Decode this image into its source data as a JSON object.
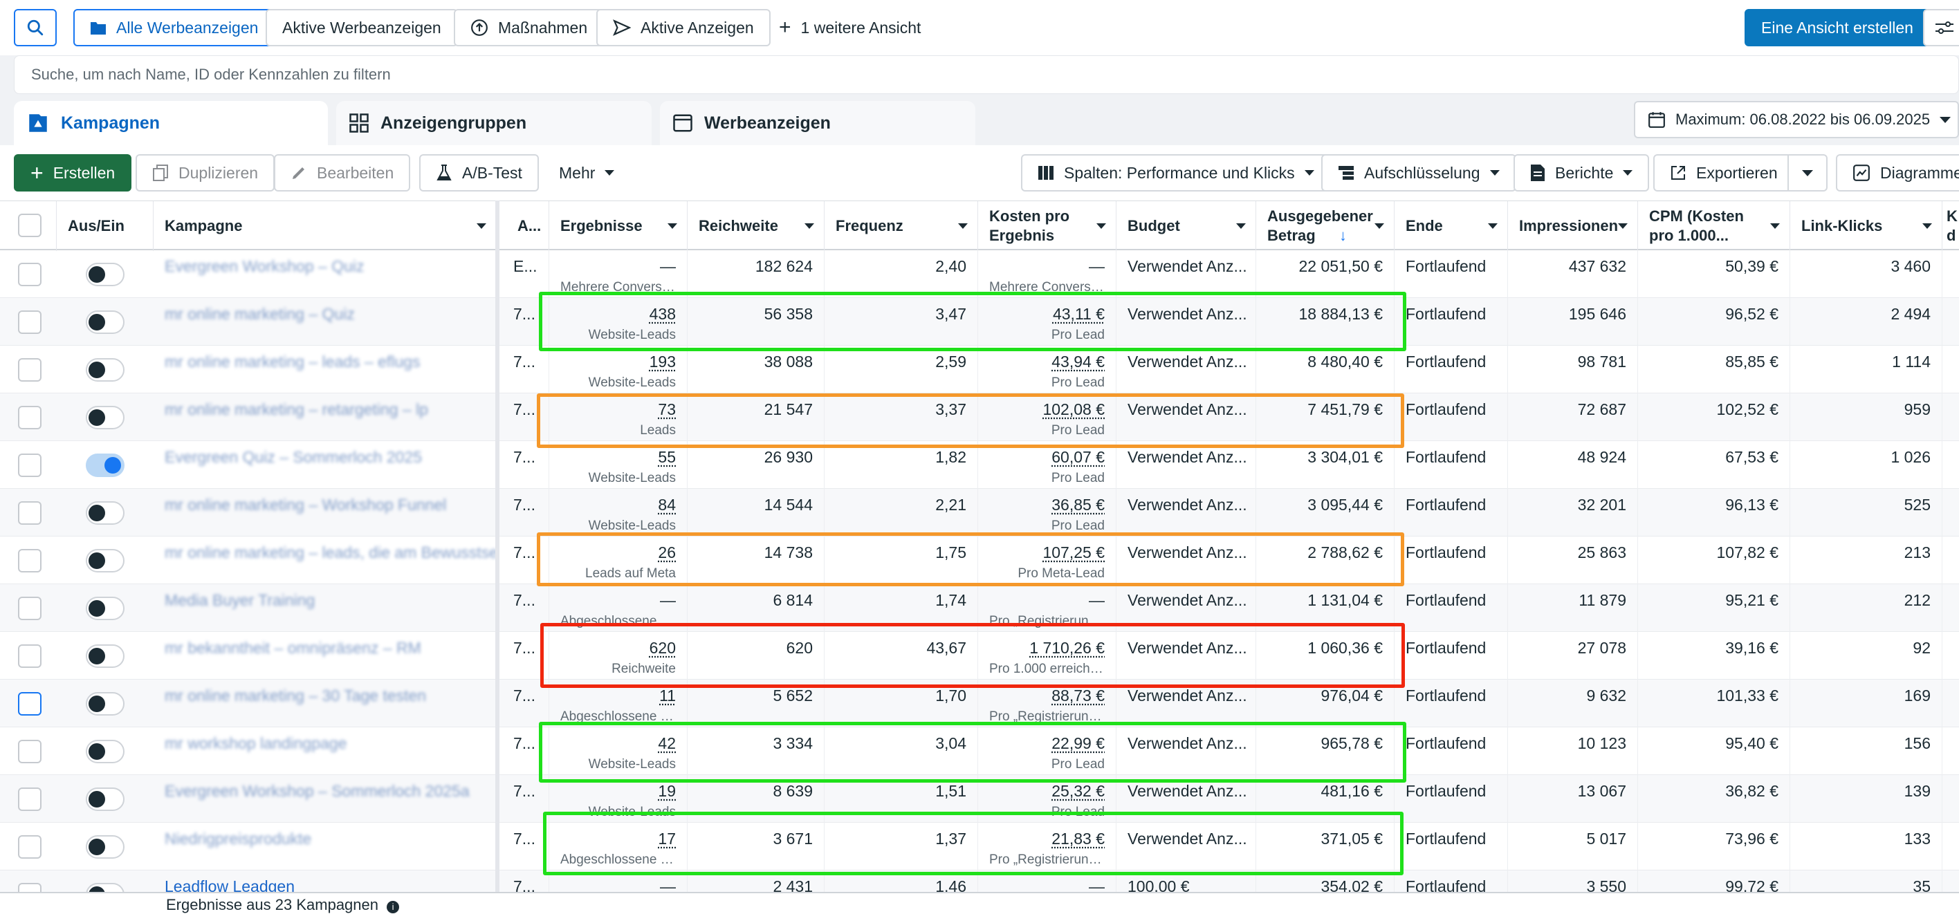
{
  "topbar": {
    "views": [
      "Alle Werbeanzeigen",
      "Aktive Werbeanzeigen",
      "Maßnahmen",
      "Aktive Anzeigen",
      "1 weitere Ansicht"
    ],
    "create_view": "Eine Ansicht erstellen"
  },
  "search": {
    "placeholder": "Suche, um nach Name, ID oder Kennzahlen zu filtern"
  },
  "tabs": [
    "Kampagnen",
    "Anzeigengruppen",
    "Werbeanzeigen"
  ],
  "daterange": "Maximum: 06.08.2022 bis 06.09.2025",
  "toolbar": {
    "create": "Erstellen",
    "duplicate": "Duplizieren",
    "edit": "Bearbeiten",
    "abtest": "A/B-Test",
    "more": "Mehr",
    "columns": "Spalten: Performance und Klicks",
    "breakdown": "Aufschlüsselung",
    "reports": "Berichte",
    "export": "Exportieren",
    "charts": "Diagramme"
  },
  "columns": {
    "onoff": "Aus/Ein",
    "campaign": "Kampagne",
    "a": "A...",
    "results": "Ergebnisse",
    "reach": "Reichweite",
    "frequency": "Frequenz",
    "cpr": "Kosten pro Ergebnis",
    "budget": "Budget",
    "spent": "Ausgegebener Betrag",
    "end": "Ende",
    "impressions": "Impressionen",
    "cpm": "CPM (Kosten pro 1.000...",
    "clicks": "Link-Klicks",
    "next": "K d"
  },
  "rows": [
    {
      "name": "Evergreen Workshop – Quiz",
      "a": "E...",
      "res": "—",
      "res_sub": "Mehrere Conversions",
      "reach": "182 624",
      "freq": "2,40",
      "cpr": "—",
      "cpr_sub": "Mehrere Conversions",
      "budget": "Verwendet Anz...",
      "spent": "22 051,50 €",
      "end": "Fortlaufend",
      "impr": "437 632",
      "cpm": "50,39 €",
      "clicks": "3 460",
      "on": false
    },
    {
      "name": "mr online marketing – Quiz",
      "a": "7...",
      "res": "438",
      "res_sub": "Website-Leads",
      "reach": "56 358",
      "freq": "3,47",
      "cpr": "43,11 €",
      "cpr_sub": "Pro Lead",
      "budget": "Verwendet Anz...",
      "spent": "18 884,13 €",
      "end": "Fortlaufend",
      "impr": "195 646",
      "cpm": "96,52 €",
      "clicks": "2 494",
      "on": false
    },
    {
      "name": "mr online marketing – leads – eflugs",
      "a": "7...",
      "res": "193",
      "res_sub": "Website-Leads",
      "reach": "38 088",
      "freq": "2,59",
      "cpr": "43,94 €",
      "cpr_sub": "Pro Lead",
      "budget": "Verwendet Anz...",
      "spent": "8 480,40 €",
      "end": "Fortlaufend",
      "impr": "98 781",
      "cpm": "85,85 €",
      "clicks": "1 114",
      "on": false
    },
    {
      "name": "mr online marketing – retargeting – lp",
      "a": "7...",
      "res": "73",
      "res_sub": "Leads",
      "reach": "21 547",
      "freq": "3,37",
      "cpr": "102,08 €",
      "cpr_sub": "Pro Lead",
      "budget": "Verwendet Anz...",
      "spent": "7 451,79 €",
      "end": "Fortlaufend",
      "impr": "72 687",
      "cpm": "102,52 €",
      "clicks": "959",
      "on": false
    },
    {
      "name": "Evergreen Quiz – Sommerloch 2025",
      "a": "7...",
      "res": "55",
      "res_sub": "Website-Leads",
      "reach": "26 930",
      "freq": "1,82",
      "cpr": "60,07 €",
      "cpr_sub": "Pro Lead",
      "budget": "Verwendet Anz...",
      "spent": "3 304,01 €",
      "end": "Fortlaufend",
      "impr": "48 924",
      "cpm": "67,53 €",
      "clicks": "1 026",
      "on": true
    },
    {
      "name": "mr online marketing – Workshop Funnel",
      "a": "7...",
      "res": "84",
      "res_sub": "Website-Leads",
      "reach": "14 544",
      "freq": "2,21",
      "cpr": "36,85 €",
      "cpr_sub": "Pro Lead",
      "budget": "Verwendet Anz...",
      "spent": "3 095,44 €",
      "end": "Fortlaufend",
      "impr": "32 201",
      "cpm": "96,13 €",
      "clicks": "525",
      "on": false
    },
    {
      "name": "mr online marketing – leads, die am Bewusstsei...",
      "a": "7...",
      "res": "26",
      "res_sub": "Leads auf Meta",
      "reach": "14 738",
      "freq": "1,75",
      "cpr": "107,25 €",
      "cpr_sub": "Pro Meta-Lead",
      "budget": "Verwendet Anz...",
      "spent": "2 788,62 €",
      "end": "Fortlaufend",
      "impr": "25 863",
      "cpm": "107,82 €",
      "clicks": "213",
      "on": false
    },
    {
      "name": "Media Buyer Training",
      "a": "7...",
      "res": "—",
      "res_sub": "Abgeschlossene Re...",
      "reach": "6 814",
      "freq": "1,74",
      "cpr": "—",
      "cpr_sub": "Pro „Registrierung ...",
      "budget": "Verwendet Anz...",
      "spent": "1 131,04 €",
      "end": "Fortlaufend",
      "impr": "11 879",
      "cpm": "95,21 €",
      "clicks": "212",
      "on": false
    },
    {
      "name": "mr bekanntheit – omnipräsenz – RM",
      "a": "7...",
      "res": "620",
      "res_sub": "Reichweite",
      "reach": "620",
      "freq": "43,67",
      "cpr": "1 710,26 €",
      "cpr_sub": "Pro 1.000 erreichte...",
      "budget": "Verwendet Anz...",
      "spent": "1 060,36 €",
      "end": "Fortlaufend",
      "impr": "27 078",
      "cpm": "39,16 €",
      "clicks": "92",
      "on": false
    },
    {
      "name": "mr online marketing – 30 Tage testen",
      "a": "7...",
      "res": "11",
      "res_sub": "Abgeschlossene R...",
      "reach": "5 652",
      "freq": "1,70",
      "cpr": "88,73 €",
      "cpr_sub": "Pro „Registrierung ...",
      "budget": "Verwendet Anz...",
      "spent": "976,04 €",
      "end": "Fortlaufend",
      "impr": "9 632",
      "cpm": "101,33 €",
      "clicks": "169",
      "on": false
    },
    {
      "name": "mr workshop landingpage",
      "a": "7...",
      "res": "42",
      "res_sub": "Website-Leads",
      "reach": "3 334",
      "freq": "3,04",
      "cpr": "22,99 €",
      "cpr_sub": "Pro Lead",
      "budget": "Verwendet Anz...",
      "spent": "965,78 €",
      "end": "Fortlaufend",
      "impr": "10 123",
      "cpm": "95,40 €",
      "clicks": "156",
      "on": false
    },
    {
      "name": "Evergreen Workshop – Sommerloch 2025a",
      "a": "7...",
      "res": "19",
      "res_sub": "Website-Leads",
      "reach": "8 639",
      "freq": "1,51",
      "cpr": "25,32 €",
      "cpr_sub": "Pro Lead",
      "budget": "Verwendet Anz...",
      "spent": "481,16 €",
      "end": "Fortlaufend",
      "impr": "13 067",
      "cpm": "36,82 €",
      "clicks": "139",
      "on": false
    },
    {
      "name": "Niedrigpreisprodukte",
      "a": "7...",
      "res": "17",
      "res_sub": "Abgeschlossene R...",
      "reach": "3 671",
      "freq": "1,37",
      "cpr": "21,83 €",
      "cpr_sub": "Pro „Registrierung ...",
      "budget": "Verwendet Anz...",
      "spent": "371,05 €",
      "end": "Fortlaufend",
      "impr": "5 017",
      "cpm": "73,96 €",
      "clicks": "133",
      "on": false
    },
    {
      "name": "Leadflow Leadgen",
      "a": "7...",
      "res": "—",
      "res_sub": "",
      "reach": "2 431",
      "freq": "1,46",
      "cpr": "—",
      "cpr_sub": "",
      "budget": "100,00 €",
      "spent": "354,02 €",
      "end": "Fortlaufend",
      "impr": "3 550",
      "cpm": "99,72 €",
      "clicks": "35",
      "on": false
    }
  ],
  "footer": "Ergebnisse aus 23 Kampagnen",
  "colors": {
    "green": "#1fe01a",
    "orange": "#f5982a",
    "red": "#f0260e",
    "accent": "#0a78be"
  }
}
